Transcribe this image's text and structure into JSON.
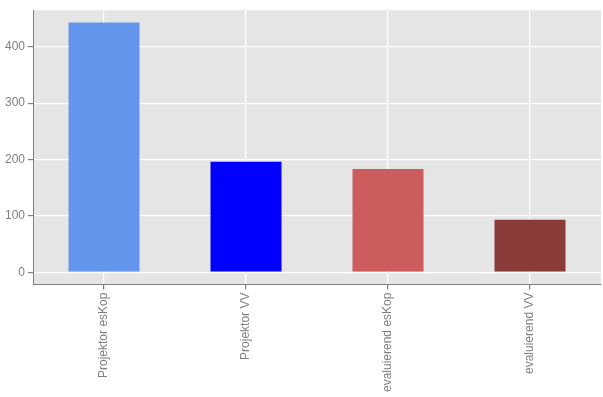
{
  "chart_data": {
    "type": "bar",
    "categories": [
      "Projektor esKop",
      "Projektor VV",
      "evaluierend esKop",
      "evaluierend VV"
    ],
    "values": [
      443,
      196,
      183,
      93
    ],
    "colors": [
      "#6495ED",
      "#0000FF",
      "#CD5C5C",
      "#8B3A3A"
    ],
    "ylim": [
      -22,
      465
    ],
    "yticks": [
      0,
      100,
      200,
      300,
      400
    ],
    "grid": true
  }
}
